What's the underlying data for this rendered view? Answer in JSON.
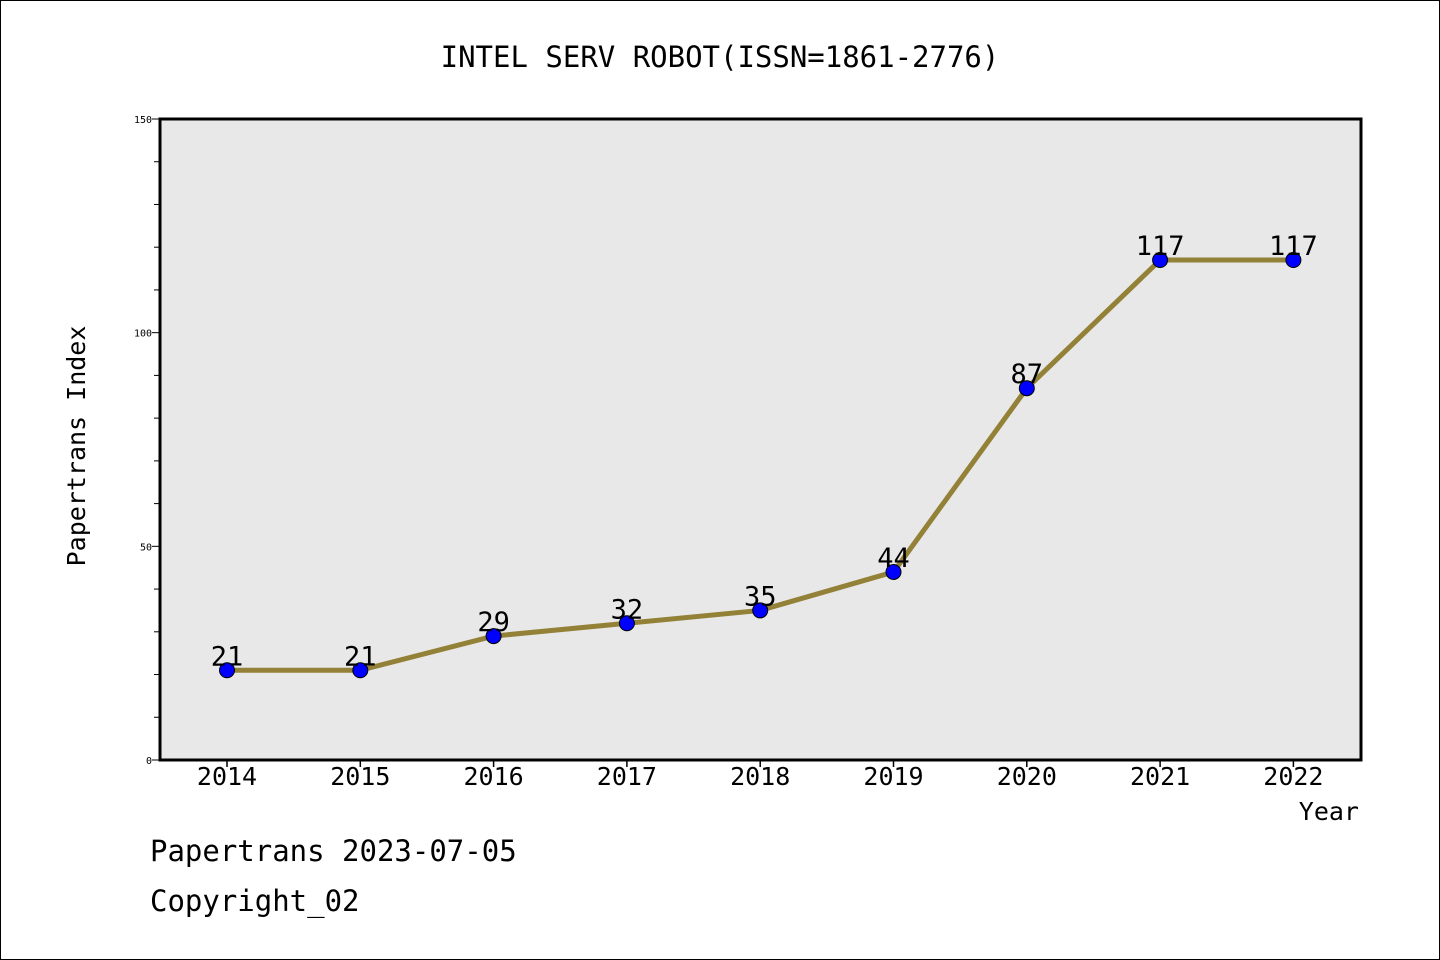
{
  "chart_data": {
    "type": "line",
    "title": "INTEL SERV ROBOT(ISSN=1861-2776)",
    "xlabel": "Year",
    "ylabel": "Papertrans Index",
    "categories": [
      "2014",
      "2015",
      "2016",
      "2017",
      "2018",
      "2019",
      "2020",
      "2021",
      "2022"
    ],
    "series": [
      {
        "values": [
          21,
          21,
          29,
          32,
          35,
          44,
          87,
          117,
          117
        ]
      }
    ],
    "data_labels": [
      "21",
      "21",
      "29",
      "32",
      "35",
      "44",
      "87",
      "117",
      "117"
    ],
    "ylim": [
      0,
      150
    ],
    "yticks": [
      0,
      50,
      100,
      150
    ],
    "y_tick_labels": [
      "0",
      "50",
      "100",
      "150"
    ],
    "grid": false,
    "colors": {
      "line": "#928137",
      "marker": "#0000ff",
      "plot_background": "#e8e8e8"
    }
  },
  "footer": {
    "line1": "Papertrans 2023-07-05",
    "line2": "Copyright_02"
  }
}
